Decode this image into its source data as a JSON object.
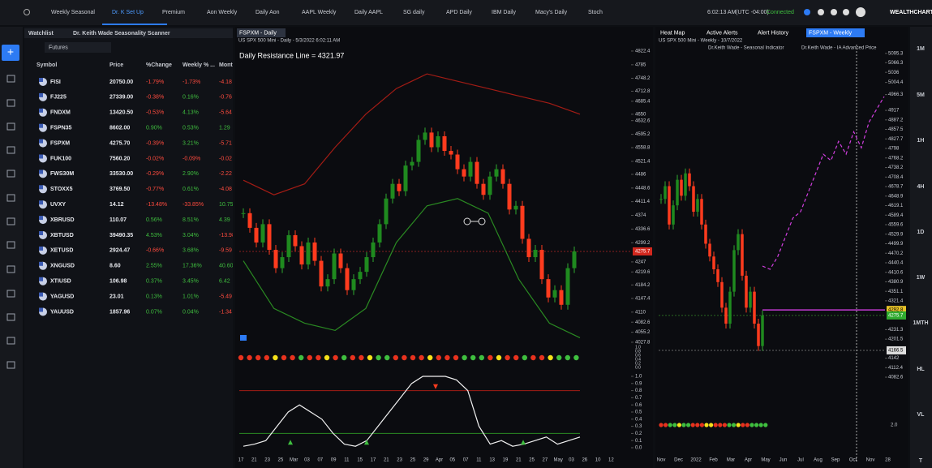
{
  "top_bar": {
    "tabs": [
      "Weekly Seasonal",
      "Dr. K Set Up",
      "Premium",
      "Aon Weekly",
      "Daily Aon",
      "AAPL Weekly",
      "Daily AAPL",
      "SG daily",
      "APD Daily",
      "IBM Daily",
      "Macy's Daily",
      "Stoch"
    ],
    "time": "6:02:13 AM",
    "timezone": "(UTC -04:00)",
    "status": "Connected",
    "brand": "WEALTHCHARTS"
  },
  "watchlist": {
    "tabs": [
      "Watchlist",
      "Dr. Keith Wade Seasonality Scanner"
    ],
    "list": "Futures",
    "columns": [
      "Symbol",
      "Price",
      "%Change",
      "Weekly % ...",
      "Month"
    ],
    "rows": [
      [
        "FISI",
        "20750.00",
        "-1.79%",
        "-1.73%",
        "-4.18"
      ],
      [
        "FJ225",
        "27339.00",
        "-0.38%",
        "0.16%",
        "-0.76"
      ],
      [
        "FNDXM",
        "13420.50",
        "-0.53%",
        "4.13%",
        "-5.64"
      ],
      [
        "FSPN35",
        "8602.00",
        "0.90%",
        "0.53%",
        "1.29"
      ],
      [
        "FSPXM",
        "4275.70",
        "-0.39%",
        "3.21%",
        "-5.71"
      ],
      [
        "FUK100",
        "7560.20",
        "-0.02%",
        "-0.09%",
        "-0.02"
      ],
      [
        "FWS30M",
        "33530.00",
        "-0.29%",
        "2.90%",
        "-2.22"
      ],
      [
        "STOXX5",
        "3769.50",
        "-0.77%",
        "0.61%",
        "-4.08"
      ],
      [
        "UVXY",
        "14.12",
        "-13.48%",
        "-33.85%",
        "10.75"
      ],
      [
        "XBRUSD",
        "110.07",
        "0.56%",
        "8.51%",
        "4.39"
      ],
      [
        "XBTUSD",
        "39490.35",
        "4.53%",
        "3.04%",
        "-13.98"
      ],
      [
        "XETUSD",
        "2924.47",
        "-0.66%",
        "3.68%",
        "-9.59"
      ],
      [
        "XNGUSD",
        "8.60",
        "2.55%",
        "17.36%",
        "40.60"
      ],
      [
        "XTIUSD",
        "106.98",
        "0.37%",
        "3.45%",
        "6.42"
      ],
      [
        "YAGUSD",
        "23.01",
        "0.13%",
        "1.01%",
        "-5.49"
      ],
      [
        "YAUUSD",
        "1857.96",
        "0.07%",
        "0.04%",
        "-1.34"
      ]
    ]
  },
  "daily_chart": {
    "tab": "FSPXM - Daily",
    "subtitle": "US SPX 500 Mini - Daily - 5/3/2022 6:02:11 AM",
    "annotation": "Daily Resistance Line = 4321.97",
    "ylim": [
      4010,
      4840
    ],
    "yticks": [
      4822.4,
      4785.0,
      4748.2,
      4712.8,
      4685.4,
      4650.0,
      4632.6,
      4595.2,
      4558.8,
      4521.4,
      4486.0,
      4448.6,
      4411.4,
      4374.0,
      4336.6,
      4299.2,
      4247.0,
      4219.6,
      4184.2,
      4147.4,
      4110.0,
      4082.6,
      4055.2,
      4027.8
    ],
    "last_price": 4275.7,
    "resistance": 4321.97,
    "dates": [
      "17",
      "21",
      "23",
      "25",
      "Mar",
      "03",
      "07",
      "09",
      "11",
      "15",
      "17",
      "21",
      "23",
      "25",
      "29",
      "Apr",
      "05",
      "07",
      "11",
      "13",
      "19",
      "21",
      "25",
      "27",
      "May",
      "03",
      "26",
      "10",
      "12"
    ],
    "closes": [
      4380,
      4340,
      4300,
      4350,
      4280,
      4230,
      4260,
      4320,
      4290,
      4240,
      4300,
      4250,
      4180,
      4200,
      4270,
      4230,
      4170,
      4200,
      4220,
      4260,
      4300,
      4350,
      4420,
      4460,
      4440,
      4510,
      4520,
      4580,
      4600,
      4560,
      4590,
      4550,
      4540,
      4500,
      4480,
      4520,
      4460,
      4430,
      4480,
      4500,
      4460,
      4390,
      4400,
      4310,
      4260,
      4280,
      4200,
      4150,
      4170,
      4130,
      4230,
      4275.7
    ],
    "upper_band": [
      4470,
      4430,
      4460,
      4560,
      4650,
      4720,
      4760,
      4740,
      4720,
      4700,
      4680,
      4650
    ],
    "lower_band": [
      4250,
      4120,
      4080,
      4060,
      4120,
      4300,
      4400,
      4420,
      4380,
      4200,
      4080,
      4040
    ],
    "signal_dots": [
      "#e8321e",
      "#e8321e",
      "#e8321e",
      "#e8321e",
      "#f5e11a",
      "#e8321e",
      "#e8321e",
      "#3fbf3f",
      "#e8321e",
      "#e8321e",
      "#f5e11a",
      "#e8321e",
      "#3fbf3f",
      "#e8321e",
      "#e8321e",
      "#f5e11a",
      "#3fbf3f",
      "#3fbf3f",
      "#e8321e",
      "#e8321e",
      "#e8321e",
      "#e8321e",
      "#f5e11a",
      "#e8321e",
      "#e8321e",
      "#e8321e",
      "#3fbf3f",
      "#3fbf3f",
      "#3fbf3f",
      "#e8321e",
      "#f5e11a",
      "#e8321e",
      "#e8321e",
      "#3fbf3f",
      "#e8321e",
      "#e8321e",
      "#f5e11a",
      "#3fbf3f",
      "#3fbf3f",
      "#3fbf3f"
    ],
    "dot_axis": [
      "1.0",
      "0.8",
      "0.6",
      "0.4",
      "0.2",
      "0.0"
    ],
    "stoch_ylim": [
      0,
      1
    ],
    "stoch_yticks": [
      {
        "value": 1,
        "label": "1.0"
      },
      0.9,
      0.8,
      0.7,
      0.6,
      0.5,
      0.4,
      0.3,
      0.2,
      0.1,
      {
        "value": 0,
        "label": "0.0"
      }
    ],
    "stoch": [
      0.02,
      0.05,
      0.1,
      0.3,
      0.5,
      0.6,
      0.5,
      0.4,
      0.2,
      0.05,
      0.02,
      0.1,
      0.3,
      0.5,
      0.7,
      0.9,
      1.0,
      1.0,
      1.0,
      0.95,
      0.8,
      0.3,
      0.05,
      0.1,
      0.02,
      0.05,
      0.1,
      0.15,
      0.05,
      0.1,
      0.15
    ],
    "stoch_upper": 0.8,
    "stoch_lower": 0.2
  },
  "weekly_chart": {
    "tabs": [
      "Heat Map",
      "Active Alerts",
      "Alert History",
      "FSPXM - Weekly"
    ],
    "subtitle": "US SPX 500 Mini - Weekly - 10/7/2022",
    "indicators": [
      "Dr.Keith Wade - Seasonal Indicator",
      "Dr.Keith Wade - IA Advanced Price"
    ],
    "ylim": [
      4070,
      5110
    ],
    "yticks": [
      5095.3,
      5066.3,
      5036.0,
      5004.4,
      4966.3,
      4917.0,
      4887.2,
      4857.5,
      4827.7,
      4798.0,
      4768.2,
      4738.2,
      4708.4,
      4678.7,
      4648.9,
      4619.1,
      4589.4,
      4559.6,
      4529.9,
      4499.9,
      4470.2,
      4440.4,
      4410.6,
      4380.9,
      4351.1,
      4321.4,
      4231.3,
      4201.5,
      4142.0,
      4112.4,
      4082.6
    ],
    "target": 4292.8,
    "last_price": 4275.7,
    "low_mark": 4166.5,
    "dates": [
      "Nov",
      "Dec",
      "2022",
      "Feb",
      "Mar",
      "Apr",
      "May",
      "Jun",
      "Jul",
      "Aug",
      "Sep",
      "Oct",
      "Nov",
      "28"
    ],
    "closes": [
      4640,
      4680,
      4560,
      4620,
      4700,
      4650,
      4720,
      4680,
      4600,
      4640,
      4560,
      4500,
      4460,
      4420,
      4380,
      4300,
      4250,
      4350,
      4480,
      4530,
      4400,
      4300,
      4350,
      4250,
      4180,
      4275.7
    ],
    "projection": [
      4430,
      4420,
      4460,
      4520,
      4580,
      4600,
      4660,
      4720,
      4780,
      4760,
      4820,
      4780,
      4850,
      4800,
      4880,
      4920,
      4960
    ],
    "signal_dots": [
      "#e8321e",
      "#e8321e",
      "#3fbf3f",
      "#3fbf3f",
      "#f5e11a",
      "#3fbf3f",
      "#3fbf3f",
      "#e8321e",
      "#e8321e",
      "#e8321e",
      "#f5e11a",
      "#f5e11a",
      "#e8321e",
      "#e8321e",
      "#e8321e",
      "#3fbf3f",
      "#3fbf3f",
      "#f5e11a",
      "#e8321e",
      "#e8321e",
      "#3fbf3f",
      "#3fbf3f",
      "#3fbf3f",
      "#3fbf3f"
    ],
    "dot_value": "2.0"
  },
  "timeframes": [
    "1M",
    "5M",
    "1H",
    "4H",
    "1D",
    "1W",
    "1MTH",
    "HL",
    "VL",
    "T"
  ]
}
